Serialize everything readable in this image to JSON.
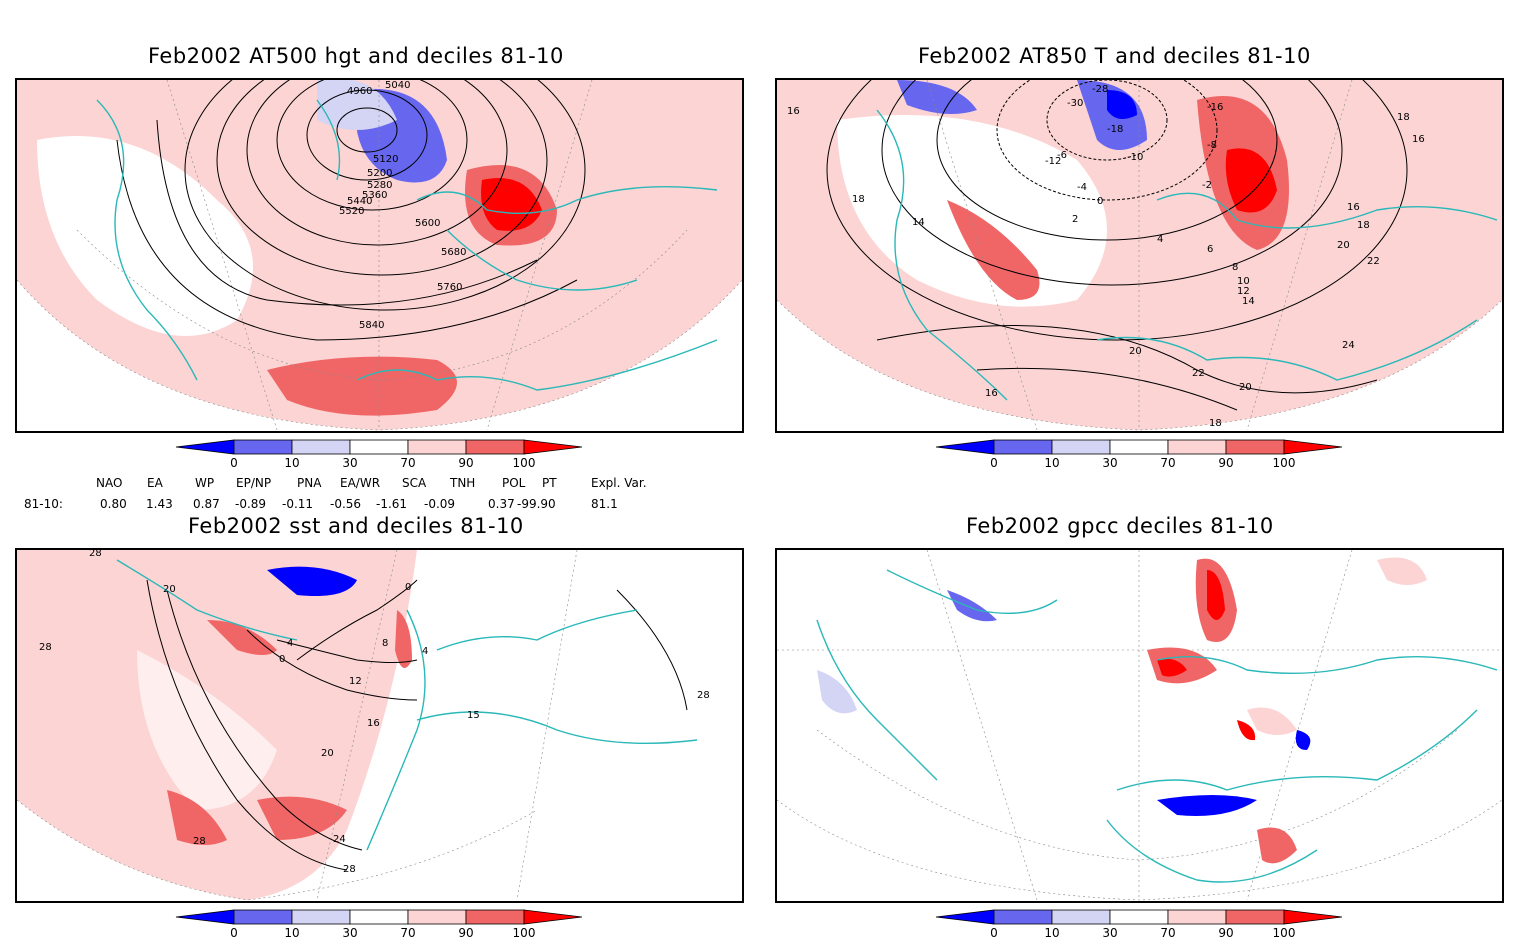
{
  "panels": [
    {
      "title": "Feb2002 AT500 hgt and deciles 81-10",
      "contour_labels": [
        "4960",
        "5040",
        "5120",
        "5200",
        "5280",
        "5360",
        "5440",
        "5520",
        "5600",
        "5680",
        "5760",
        "5840"
      ]
    },
    {
      "title": "Feb2002 AT850 T and deciles 81-10",
      "contour_labels": [
        "-28",
        "-30",
        "-16",
        "-18",
        "-8",
        "-10",
        "-12",
        "-6",
        "-4",
        "-2",
        "0",
        "2",
        "4",
        "6",
        "8",
        "10",
        "12",
        "14",
        "16",
        "18",
        "20",
        "22",
        "24",
        "18",
        "16",
        "14",
        "16",
        "18",
        "20",
        "22",
        "20",
        "18",
        "16"
      ]
    },
    {
      "title": "Feb2002 sst and deciles 81-10",
      "contour_labels": [
        "28",
        "20",
        "28",
        "0",
        "4",
        "8",
        "12",
        "16",
        "20",
        "24",
        "28",
        "28",
        "4",
        "15",
        "28",
        "0"
      ]
    },
    {
      "title": "Feb2002 gpcc deciles 81-10",
      "contour_labels": []
    }
  ],
  "colorbar": {
    "labels": [
      "0",
      "10",
      "30",
      "70",
      "90",
      "100"
    ],
    "colors": [
      "#0000ff",
      "#6666ee",
      "#d4d4f4",
      "#ffffff",
      "#fcd4d4",
      "#f06666",
      "#ff0000"
    ]
  },
  "indices": {
    "headers": [
      "NAO",
      "EA",
      "WP",
      "EP/NP",
      "PNA",
      "EA/WR",
      "SCA",
      "TNH",
      "POL",
      "PT",
      "Expl. Var."
    ],
    "row_label": "81-10:",
    "values": [
      "0.80",
      "1.43",
      "0.87",
      "-0.89",
      "-0.11",
      "-0.56",
      "-1.61",
      "-0.09",
      "0.37",
      "-99.90",
      "81.1"
    ]
  },
  "colors": {
    "coast": "#2ab8b8",
    "contour": "#000000",
    "grid": "#888888"
  }
}
